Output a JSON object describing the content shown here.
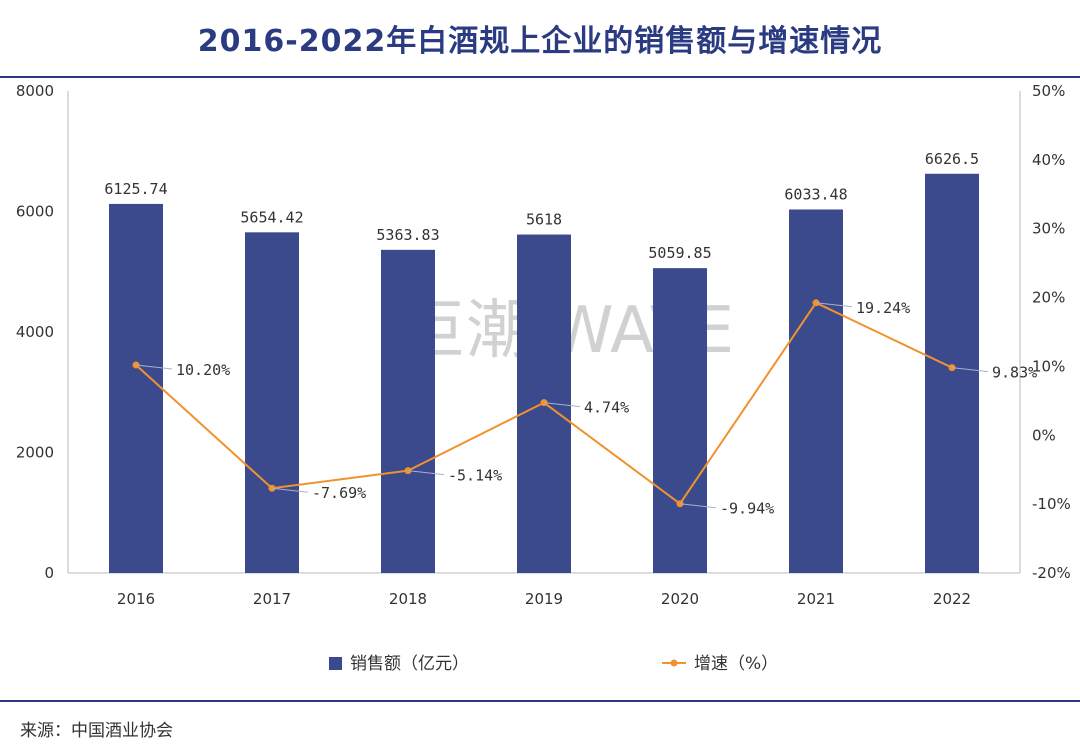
{
  "title": "2016-2022年白酒规上企业的销售额与增速情况",
  "source": "来源：中国酒业协会",
  "watermark": "巨潮 WAVE",
  "colors": {
    "bar": "#3b4a8c",
    "line": "#f0922e",
    "title": "#2b3b82",
    "axis": "#bbbbbb"
  },
  "chart_data": {
    "type": "bar+line",
    "title": "2016-2022年白酒规上企业的销售额与增速情况",
    "categories": [
      "2016",
      "2017",
      "2018",
      "2019",
      "2020",
      "2021",
      "2022"
    ],
    "series": [
      {
        "name": "销售额（亿元）",
        "type": "bar",
        "axis": "left",
        "values": [
          6125.74,
          5654.42,
          5363.83,
          5618,
          5059.85,
          6033.48,
          6626.5
        ],
        "labels": [
          "6125.74",
          "5654.42",
          "5363.83",
          "5618",
          "5059.85",
          "6033.48",
          "6626.5"
        ]
      },
      {
        "name": "增速（%）",
        "type": "line",
        "axis": "right",
        "values": [
          10.2,
          -7.69,
          -5.14,
          4.74,
          -9.94,
          19.24,
          9.83
        ],
        "labels": [
          "10.20%",
          "-7.69%",
          "-5.14%",
          "4.74%",
          "-9.94%",
          "19.24%",
          "9.83%"
        ]
      }
    ],
    "y_left": {
      "min": 0,
      "max": 8000,
      "ticks": [
        0,
        2000,
        4000,
        6000,
        8000
      ]
    },
    "y_right": {
      "min": -20,
      "max": 50,
      "ticks": [
        -20,
        -10,
        0,
        10,
        20,
        30,
        40,
        50
      ],
      "tick_labels": [
        "-20%",
        "-10%",
        "0%",
        "10%",
        "20%",
        "30%",
        "40%",
        "50%"
      ]
    },
    "legend": {
      "position": "bottom",
      "entries": [
        "销售额（亿元）",
        "增速（%）"
      ]
    }
  }
}
